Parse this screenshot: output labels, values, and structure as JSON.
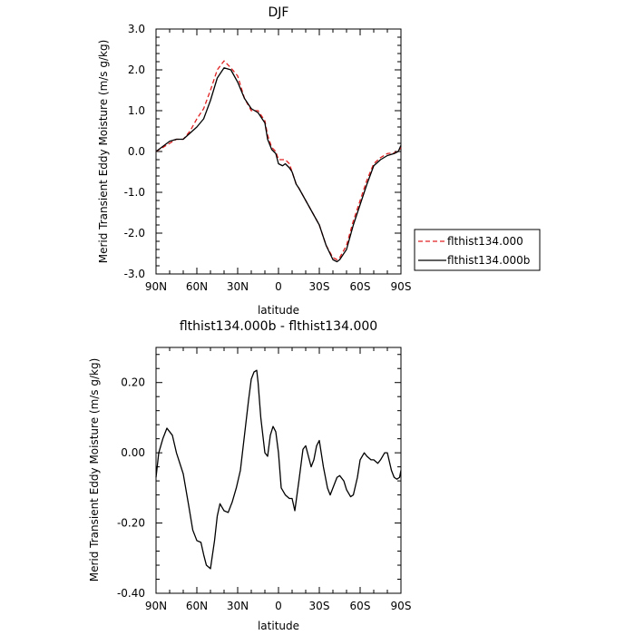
{
  "chart_data": [
    {
      "type": "line",
      "title": "DJF",
      "xlabel": "latitude",
      "ylabel": "Merid Transient Eddy Moisture (m/s g/kg)",
      "xlim": [
        90,
        -90
      ],
      "ylim": [
        -3.0,
        3.0
      ],
      "x_ticks": [
        90,
        60,
        30,
        0,
        -30,
        -60,
        -90
      ],
      "x_tick_labels": [
        "90N",
        "60N",
        "30N",
        "0",
        "30S",
        "60S",
        "90S"
      ],
      "y_ticks": [
        3.0,
        2.0,
        1.0,
        0.0,
        -1.0,
        -2.0,
        -3.0
      ],
      "y_tick_labels": [
        "3.0",
        "2.0",
        "1.0",
        "0.0",
        "-1.0",
        "-2.0",
        "-3.0"
      ],
      "grid": false,
      "legend": "right",
      "series": [
        {
          "name": "flthist134.000",
          "color": "#e02020",
          "style": "dashed",
          "x": [
            90,
            80,
            75,
            70,
            65,
            60,
            55,
            50,
            45,
            40,
            35,
            30,
            25,
            20,
            15,
            10,
            8,
            5,
            2,
            0,
            -3,
            -5,
            -8,
            -10,
            -13,
            -15,
            -20,
            -25,
            -30,
            -35,
            -40,
            -43,
            -45,
            -50,
            -55,
            -60,
            -65,
            -70,
            -75,
            -80,
            -85,
            -88,
            -90
          ],
          "y": [
            0.0,
            0.2,
            0.3,
            0.3,
            0.5,
            0.8,
            1.05,
            1.5,
            2.0,
            2.22,
            2.05,
            1.85,
            1.3,
            1.0,
            1.0,
            0.75,
            0.4,
            0.1,
            0.0,
            -0.2,
            -0.2,
            -0.2,
            -0.3,
            -0.5,
            -0.8,
            -0.9,
            -1.2,
            -1.5,
            -1.8,
            -2.3,
            -2.6,
            -2.65,
            -2.6,
            -2.3,
            -1.7,
            -1.2,
            -0.7,
            -0.3,
            -0.15,
            -0.05,
            -0.03,
            0.0,
            0.1
          ]
        },
        {
          "name": "flthist134.000b",
          "color": "#000000",
          "style": "solid",
          "x": [
            90,
            80,
            75,
            70,
            65,
            60,
            55,
            50,
            45,
            40,
            35,
            30,
            25,
            20,
            15,
            10,
            8,
            5,
            2,
            0,
            -3,
            -5,
            -8,
            -10,
            -13,
            -15,
            -20,
            -25,
            -30,
            -35,
            -40,
            -43,
            -45,
            -50,
            -55,
            -60,
            -65,
            -70,
            -75,
            -80,
            -85,
            -88,
            -90
          ],
          "y": [
            0.0,
            0.25,
            0.3,
            0.3,
            0.45,
            0.6,
            0.8,
            1.25,
            1.8,
            2.05,
            2.0,
            1.7,
            1.3,
            1.05,
            0.95,
            0.7,
            0.3,
            0.05,
            -0.05,
            -0.3,
            -0.35,
            -0.3,
            -0.4,
            -0.5,
            -0.8,
            -0.9,
            -1.2,
            -1.5,
            -1.8,
            -2.3,
            -2.65,
            -2.7,
            -2.65,
            -2.4,
            -1.8,
            -1.3,
            -0.8,
            -0.35,
            -0.2,
            -0.1,
            -0.05,
            0.0,
            0.15
          ]
        }
      ]
    },
    {
      "type": "line",
      "title": "flthist134.000b - flthist134.000",
      "xlabel": "latitude",
      "ylabel": "Merid Transient Eddy Moisture (m/s g/kg)",
      "xlim": [
        90,
        -90
      ],
      "ylim": [
        -0.4,
        0.3
      ],
      "x_ticks": [
        90,
        60,
        30,
        0,
        -30,
        -60,
        -90
      ],
      "x_tick_labels": [
        "90N",
        "60N",
        "30N",
        "0",
        "30S",
        "60S",
        "90S"
      ],
      "y_ticks": [
        0.2,
        0.0,
        -0.2,
        -0.4
      ],
      "y_tick_labels": [
        "0.20",
        "0.00",
        "-0.20",
        "-0.40"
      ],
      "grid": false,
      "series": [
        {
          "name": "",
          "color": "#000000",
          "style": "solid",
          "x": [
            90,
            88,
            85,
            82,
            78,
            75,
            70,
            66,
            63,
            60,
            57,
            55,
            53,
            50,
            47,
            45,
            43,
            40,
            37,
            34,
            31,
            28,
            25,
            22,
            20,
            18,
            16,
            15,
            13,
            10,
            8,
            6,
            4,
            2,
            0,
            -2,
            -5,
            -8,
            -10,
            -12,
            -15,
            -18,
            -20,
            -22,
            -24,
            -26,
            -28,
            -30,
            -33,
            -36,
            -38,
            -40,
            -43,
            -45,
            -48,
            -50,
            -53,
            -55,
            -58,
            -60,
            -63,
            -65,
            -68,
            -70,
            -73,
            -75,
            -78,
            -80,
            -83,
            -85,
            -87,
            -89,
            -90
          ],
          "y": [
            -0.07,
            0.0,
            0.04,
            0.07,
            0.05,
            0.0,
            -0.06,
            -0.15,
            -0.22,
            -0.25,
            -0.255,
            -0.29,
            -0.32,
            -0.33,
            -0.25,
            -0.18,
            -0.145,
            -0.165,
            -0.17,
            -0.14,
            -0.1,
            -0.05,
            0.05,
            0.15,
            0.21,
            0.23,
            0.235,
            0.2,
            0.1,
            0.0,
            -0.01,
            0.05,
            0.075,
            0.06,
            0.0,
            -0.1,
            -0.12,
            -0.13,
            -0.13,
            -0.165,
            -0.08,
            0.01,
            0.02,
            -0.01,
            -0.04,
            -0.02,
            0.02,
            0.035,
            -0.04,
            -0.1,
            -0.12,
            -0.1,
            -0.07,
            -0.065,
            -0.08,
            -0.105,
            -0.125,
            -0.12,
            -0.07,
            -0.02,
            0.0,
            -0.01,
            -0.02,
            -0.02,
            -0.03,
            -0.02,
            0.0,
            0.0,
            -0.05,
            -0.07,
            -0.075,
            -0.07,
            -0.05
          ]
        }
      ]
    }
  ]
}
